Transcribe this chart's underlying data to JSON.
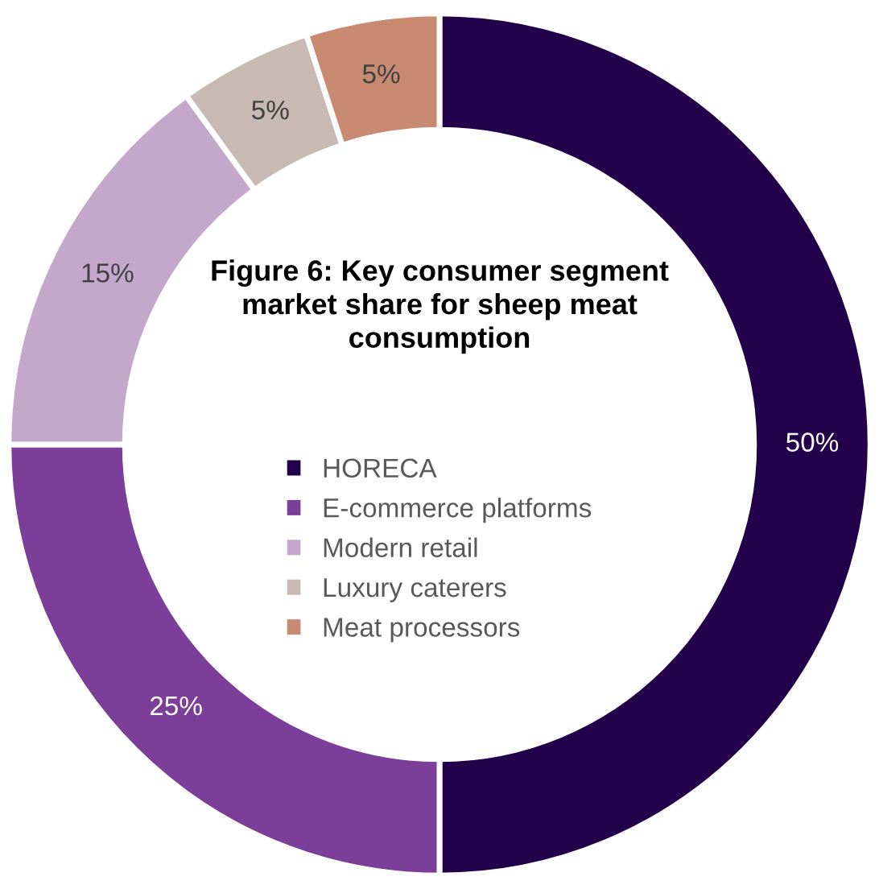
{
  "chart_data": {
    "type": "donut",
    "title": "Figure 6: Key consumer segment market share for sheep meat consumption",
    "categories": [
      "HORECA",
      "E-commerce platforms",
      "Modern retail",
      "Luxury caterers",
      "Meat processors"
    ],
    "values": [
      50,
      25,
      15,
      5,
      5
    ],
    "colors": [
      "#22004a",
      "#7b3f99",
      "#c4a8cc",
      "#c8b9b3",
      "#c98a72"
    ],
    "value_labels": [
      "50%",
      "25%",
      "15%",
      "5%",
      "5%"
    ],
    "legend": "center"
  }
}
